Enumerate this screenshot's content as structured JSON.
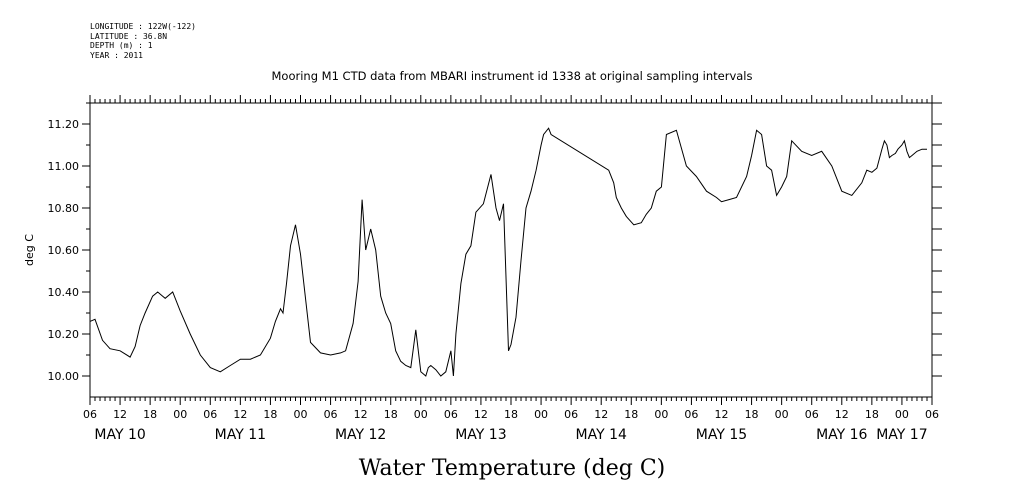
{
  "header": {
    "longitude": "LONGITUDE : 122W(-122)",
    "latitude": "LATITUDE : 36.8N",
    "depth": "DEPTH (m) : 1",
    "year": "YEAR : 2011"
  },
  "chart_data": {
    "type": "line",
    "title": "Mooring M1 CTD data from MBARI instrument id 1338 at original sampling intervals",
    "xlabel": "Water Temperature (deg C)",
    "ylabel": "deg C",
    "ylim": [
      9.9,
      11.3
    ],
    "yticks": [
      "10.00",
      "10.20",
      "10.40",
      "10.60",
      "10.80",
      "11.00",
      "11.20"
    ],
    "ytick_values": [
      10.0,
      10.2,
      10.4,
      10.6,
      10.8,
      11.0,
      11.2
    ],
    "xlim_hours": [
      6,
      174
    ],
    "hour_tick_labels": [
      "06",
      "12",
      "18",
      "00",
      "06",
      "12",
      "18",
      "00",
      "06",
      "12",
      "18",
      "00",
      "06",
      "12",
      "18",
      "00",
      "06",
      "12",
      "18",
      "00",
      "06",
      "12",
      "18",
      "00",
      "06",
      "12",
      "18",
      "00",
      "06"
    ],
    "day_labels": [
      "MAY 10",
      "MAY 11",
      "MAY 12",
      "MAY 13",
      "MAY 14",
      "MAY 15",
      "MAY 16",
      "MAY 17"
    ],
    "day_label_hours": [
      12,
      36,
      60,
      84,
      108,
      132,
      156,
      168
    ],
    "grid": false,
    "series": [
      {
        "x_hours": [
          6.0,
          7.0,
          8.5,
          10.0,
          12.0,
          14.0,
          15.0,
          16.0,
          17.0,
          18.5,
          19.5,
          20.5,
          21.0,
          22.5,
          24.0,
          26.0,
          28.0,
          30.0,
          32.0,
          34.0,
          36.0,
          38.0,
          40.0,
          42.0,
          43.0,
          44.0,
          44.5,
          45.2,
          46.0,
          47.0,
          48.0,
          50.0,
          52.0,
          54.0,
          56.0,
          57.0,
          58.5,
          59.5,
          60.3,
          61.0,
          62.0,
          63.0,
          64.0,
          65.0,
          66.0,
          67.0,
          68.0,
          69.0,
          70.0,
          71.0,
          72.0,
          73.0,
          73.5,
          74.0,
          75.0,
          76.0,
          77.0,
          78.0,
          78.5,
          79.0,
          80.0,
          81.0,
          82.0,
          83.0,
          84.5,
          86.0,
          87.0,
          87.7,
          88.5,
          89.5,
          90.0,
          91.0,
          92.0,
          93.0,
          94.0,
          95.0,
          96.0,
          96.5,
          97.5,
          98.0,
          109.5,
          110.5,
          111.0,
          112.0,
          113.0,
          114.5,
          116.0,
          117.0,
          118.0,
          119.0,
          120.0,
          121.0,
          123.0,
          125.0,
          127.0,
          129.0,
          131.0,
          132.0,
          133.5,
          135.0,
          137.0,
          138.0,
          139.0,
          140.0,
          141.0,
          142.0,
          143.0,
          144.0,
          145.0,
          146.0,
          148.0,
          150.0,
          152.0,
          154.0,
          156.0,
          158.0,
          160.0,
          161.0,
          162.0,
          163.0,
          164.0,
          164.5,
          165.0,
          165.5,
          166.0,
          166.7,
          167.2,
          168.0,
          168.5,
          169.0,
          169.5,
          170.0,
          171.0,
          172.0,
          173.0
        ],
        "y": [
          10.26,
          10.27,
          10.17,
          10.13,
          10.12,
          10.09,
          10.14,
          10.24,
          10.3,
          10.38,
          10.4,
          10.38,
          10.37,
          10.4,
          10.31,
          10.2,
          10.1,
          10.04,
          10.02,
          10.05,
          10.08,
          10.08,
          10.1,
          10.18,
          10.26,
          10.32,
          10.3,
          10.44,
          10.62,
          10.72,
          10.58,
          10.16,
          10.11,
          10.1,
          10.11,
          10.12,
          10.25,
          10.45,
          10.84,
          10.6,
          10.7,
          10.6,
          10.38,
          10.3,
          10.25,
          10.12,
          10.07,
          10.05,
          10.04,
          10.22,
          10.02,
          10.0,
          10.04,
          10.05,
          10.03,
          10.0,
          10.02,
          10.12,
          10.0,
          10.2,
          10.44,
          10.58,
          10.62,
          10.78,
          10.82,
          10.96,
          10.8,
          10.74,
          10.82,
          10.12,
          10.15,
          10.28,
          10.55,
          10.8,
          10.88,
          10.98,
          11.1,
          11.15,
          11.18,
          11.15,
          10.98,
          10.92,
          10.85,
          10.8,
          10.76,
          10.72,
          10.73,
          10.77,
          10.8,
          10.88,
          10.9,
          11.15,
          11.17,
          11.0,
          10.95,
          10.88,
          10.85,
          10.83,
          10.84,
          10.85,
          10.95,
          11.05,
          11.17,
          11.15,
          11.0,
          10.98,
          10.86,
          10.9,
          10.95,
          11.12,
          11.07,
          11.05,
          11.07,
          11.0,
          10.88,
          10.86,
          10.92,
          10.98,
          10.97,
          10.99,
          11.08,
          11.12,
          11.1,
          11.04,
          11.05,
          11.06,
          11.08,
          11.1,
          11.12,
          11.07,
          11.04,
          11.05,
          11.07,
          11.08,
          11.08
        ]
      }
    ]
  }
}
